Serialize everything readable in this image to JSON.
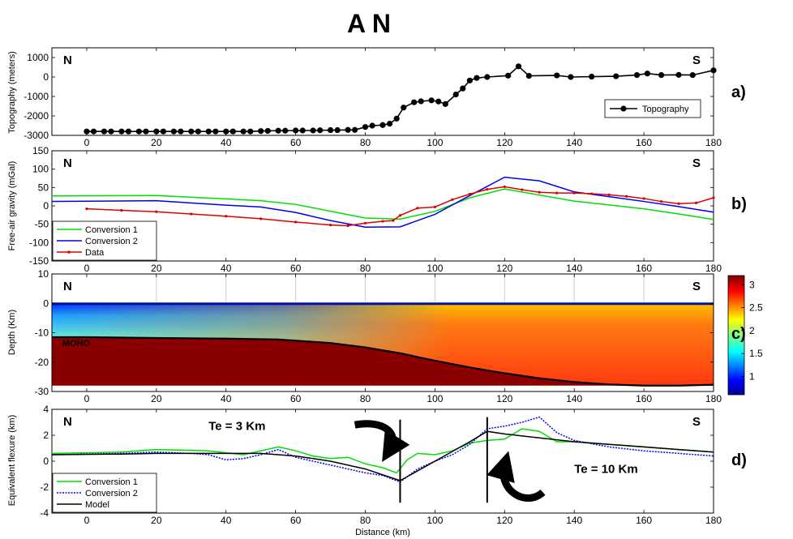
{
  "title": "A N",
  "chart_data": [
    {
      "type": "line",
      "panel_label": "a)",
      "corner_left": "N",
      "corner_right": "S",
      "xlabel": "",
      "ylabel": "Topography (meters)",
      "xlim": [
        -10,
        180
      ],
      "ylim": [
        -3000,
        1500
      ],
      "xticks": [
        "0",
        "20",
        "40",
        "60",
        "80",
        "100",
        "120",
        "140",
        "160",
        "180"
      ],
      "yticks": [
        "-3000",
        "-2000",
        "-1000",
        "0",
        "1000"
      ],
      "legend_position": "lower-right",
      "series": [
        {
          "name": "Topography",
          "color": "#000000",
          "marker": "dot",
          "x": [
            0,
            2,
            5,
            7,
            10,
            12,
            15,
            17,
            20,
            22,
            25,
            27,
            30,
            32,
            35,
            37,
            40,
            42,
            45,
            47,
            50,
            52,
            55,
            57,
            60,
            62,
            65,
            67,
            70,
            72,
            75,
            77,
            80,
            82,
            85,
            87,
            89,
            91,
            94,
            96,
            99,
            101,
            103,
            106,
            108,
            110,
            112,
            115,
            121,
            124,
            127,
            135,
            139,
            145,
            152,
            158,
            161,
            165,
            170,
            174,
            180
          ],
          "y": [
            -2800,
            -2800,
            -2800,
            -2800,
            -2800,
            -2800,
            -2800,
            -2800,
            -2800,
            -2800,
            -2800,
            -2800,
            -2800,
            -2800,
            -2800,
            -2800,
            -2800,
            -2800,
            -2800,
            -2800,
            -2780,
            -2770,
            -2760,
            -2760,
            -2750,
            -2750,
            -2750,
            -2740,
            -2730,
            -2730,
            -2720,
            -2720,
            -2570,
            -2500,
            -2470,
            -2400,
            -2140,
            -1570,
            -1300,
            -1250,
            -1200,
            -1260,
            -1390,
            -900,
            -590,
            -180,
            -50,
            0,
            70,
            550,
            60,
            80,
            0,
            20,
            40,
            100,
            180,
            100,
            110,
            100,
            340
          ]
        }
      ]
    },
    {
      "type": "line",
      "panel_label": "b)",
      "corner_left": "N",
      "corner_right": "S",
      "xlabel": "",
      "ylabel": "Free-air gravity (mGal)",
      "xlim": [
        -10,
        180
      ],
      "ylim": [
        -150,
        150
      ],
      "xticks": [
        "0",
        "20",
        "40",
        "60",
        "80",
        "100",
        "120",
        "140",
        "160",
        "180"
      ],
      "yticks": [
        "-150",
        "-100",
        "-50",
        "0",
        "50",
        "100",
        "150"
      ],
      "legend_position": "lower-left",
      "series": [
        {
          "name": "Conversion 1",
          "color": "#00dd00",
          "x": [
            -10,
            20,
            40,
            50,
            60,
            80,
            90,
            100,
            110,
            120,
            140,
            160,
            170,
            180
          ],
          "y": [
            27,
            28,
            19,
            14,
            4,
            -33,
            -36,
            -15,
            22,
            46,
            13,
            -8,
            -22,
            -37
          ]
        },
        {
          "name": "Conversion 2",
          "color": "#0000ee",
          "x": [
            -10,
            20,
            40,
            50,
            60,
            70,
            80,
            90,
            100,
            110,
            120,
            130,
            140,
            160,
            170,
            180
          ],
          "y": [
            12,
            14,
            2,
            -3,
            -18,
            -40,
            -58,
            -57,
            -23,
            28,
            78,
            68,
            38,
            12,
            -2,
            -17
          ]
        },
        {
          "name": "Data",
          "color": "#dd0000",
          "marker": "dot",
          "x": [
            0,
            10,
            20,
            30,
            40,
            50,
            60,
            70,
            75,
            80,
            85,
            88,
            90,
            95,
            100,
            105,
            110,
            115,
            120,
            125,
            130,
            135,
            140,
            145,
            150,
            155,
            160,
            165,
            170,
            175,
            180
          ],
          "y": [
            -8,
            -12,
            -16,
            -22,
            -28,
            -35,
            -44,
            -52,
            -54,
            -47,
            -42,
            -40,
            -26,
            -6,
            -3,
            17,
            32,
            45,
            52,
            44,
            37,
            35,
            35,
            33,
            30,
            26,
            20,
            12,
            6,
            8,
            22
          ]
        }
      ]
    },
    {
      "type": "heatmap",
      "panel_label": "c)",
      "corner_left": "N",
      "corner_right": "S",
      "xlabel": "",
      "ylabel": "Depth (Km)",
      "xlim": [
        -10,
        180
      ],
      "ylim": [
        -30,
        10
      ],
      "xticks": [
        "0",
        "20",
        "40",
        "60",
        "80",
        "100",
        "120",
        "140",
        "160",
        "180"
      ],
      "yticks": [
        "-30",
        "-20",
        "-10",
        "0",
        "10"
      ],
      "colorbar_ticks": [
        "1",
        "1.5",
        "2",
        "2.5",
        "3"
      ],
      "colorbar_range": [
        0.6,
        3.2
      ],
      "moho_label": "MOHO",
      "moho": {
        "x": [
          -10,
          0,
          20,
          40,
          55,
          70,
          80,
          90,
          100,
          110,
          120,
          130,
          140,
          150,
          160,
          170,
          180
        ],
        "y": [
          -11.5,
          -11.5,
          -11.8,
          -12,
          -12.3,
          -13.5,
          -15,
          -17,
          -19.5,
          -21.8,
          -23.8,
          -25.5,
          -26.8,
          -27.6,
          -28,
          -28,
          -27.7
        ]
      }
    },
    {
      "type": "line",
      "panel_label": "d)",
      "corner_left": "N",
      "corner_right": "S",
      "xlabel": "Distance (km)",
      "ylabel": "Equivalent flexure (km)",
      "xlim": [
        -10,
        180
      ],
      "ylim": [
        -4,
        4
      ],
      "xticks": [
        "0",
        "20",
        "40",
        "60",
        "80",
        "100",
        "120",
        "140",
        "160",
        "180"
      ],
      "yticks": [
        "-4",
        "-2",
        "0",
        "2",
        "4"
      ],
      "legend_position": "lower-left",
      "annotations": [
        "Te = 3 Km",
        "Te = 10 Km"
      ],
      "series": [
        {
          "name": "Conversion 1",
          "color": "#00dd00",
          "x": [
            -10,
            10,
            20,
            35,
            45,
            55,
            60,
            65,
            70,
            75,
            80,
            85,
            89,
            92,
            95,
            100,
            105,
            110,
            115,
            120,
            125,
            130,
            135,
            140,
            150,
            160,
            170,
            180
          ],
          "y": [
            0.6,
            0.7,
            0.9,
            0.8,
            0.5,
            1.1,
            0.8,
            0.4,
            0.2,
            0.3,
            -0.2,
            -0.5,
            -0.9,
            0.1,
            0.6,
            0.5,
            0.8,
            1.4,
            1.6,
            1.7,
            2.5,
            2.3,
            1.5,
            1.5,
            1.3,
            1.1,
            0.9,
            0.7
          ]
        },
        {
          "name": "Conversion 2",
          "color": "#0000ee",
          "x": [
            -10,
            10,
            20,
            30,
            35,
            40,
            45,
            50,
            55,
            60,
            65,
            70,
            75,
            80,
            85,
            90,
            95,
            100,
            105,
            110,
            115,
            120,
            125,
            130,
            135,
            140,
            150,
            160,
            170,
            180
          ],
          "y": [
            0.5,
            0.6,
            0.7,
            0.6,
            0.5,
            0.1,
            0.2,
            0.5,
            0.9,
            0.3,
            0,
            -0.3,
            -0.6,
            -0.9,
            -1.1,
            -1.6,
            -0.6,
            0,
            0.5,
            1.3,
            2.5,
            2.7,
            3,
            3.4,
            2.2,
            1.6,
            1.1,
            0.8,
            0.6,
            0.4
          ]
        },
        {
          "name": "Model",
          "color": "#000000",
          "x": [
            -10,
            10,
            20,
            30,
            40,
            50,
            60,
            70,
            80,
            90,
            100,
            110,
            115,
            120,
            130,
            140,
            150,
            160,
            170,
            180
          ],
          "y": [
            0.5,
            0.55,
            0.6,
            0.6,
            0.6,
            0.6,
            0.4,
            0,
            -0.6,
            -1.5,
            0,
            1.5,
            2.3,
            2.1,
            1.8,
            1.5,
            1.3,
            1.1,
            0.9,
            0.7
          ]
        }
      ]
    }
  ]
}
